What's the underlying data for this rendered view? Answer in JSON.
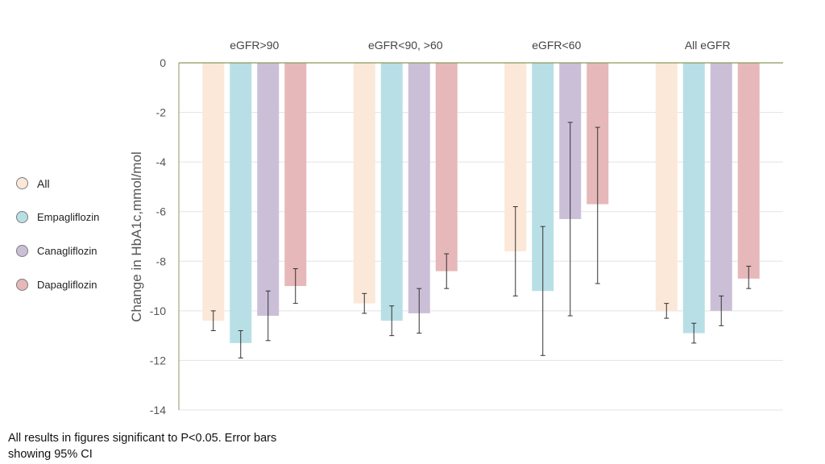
{
  "chart_data": {
    "type": "bar",
    "categories": [
      "eGFR>90",
      "eGFR<90, >60",
      "eGFR<60",
      "All eGFR"
    ],
    "ylabel": "Change in HbA1c,mmol/mol",
    "ylim": [
      -14,
      0
    ],
    "yticks": [
      0,
      -2,
      -4,
      -6,
      -8,
      -10,
      -12,
      -14
    ],
    "grid": true,
    "error_bars": "95% CI",
    "series": [
      {
        "name": "All",
        "color": "#fce8d8",
        "values": [
          -10.4,
          -9.7,
          -7.6,
          -10.0
        ],
        "ci_low": [
          -10.8,
          -10.1,
          -9.4,
          -10.3
        ],
        "ci_high": [
          -10.0,
          -9.3,
          -5.8,
          -9.7
        ]
      },
      {
        "name": "Empagliflozin",
        "color": "#b8dfe6",
        "values": [
          -11.3,
          -10.4,
          -9.2,
          -10.9
        ],
        "ci_low": [
          -11.9,
          -11.0,
          -11.8,
          -11.3
        ],
        "ci_high": [
          -10.8,
          -9.8,
          -6.6,
          -10.5
        ]
      },
      {
        "name": "Canagliflozin",
        "color": "#cbbfd8",
        "values": [
          -10.2,
          -10.1,
          -6.3,
          -10.0
        ],
        "ci_low": [
          -11.2,
          -10.9,
          -10.2,
          -10.6
        ],
        "ci_high": [
          -9.2,
          -9.1,
          -2.4,
          -9.4
        ]
      },
      {
        "name": "Dapagliflozin",
        "color": "#e6b8b9",
        "values": [
          -9.0,
          -8.4,
          -5.7,
          -8.7
        ],
        "ci_low": [
          -9.7,
          -9.1,
          -8.9,
          -9.1
        ],
        "ci_high": [
          -8.3,
          -7.7,
          -2.6,
          -8.2
        ]
      }
    ]
  },
  "footnote": "All results in figures significant to P<0.05. Error bars showing 95% CI"
}
